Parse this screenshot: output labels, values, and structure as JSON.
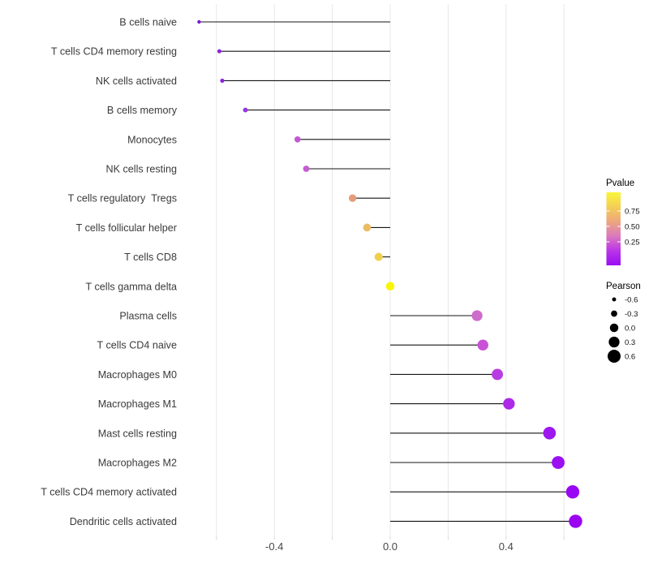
{
  "chart_data": {
    "type": "lollipop",
    "orientation": "horizontal",
    "title": "",
    "xlabel": "",
    "ylabel": "",
    "xlim": [
      -0.73,
      0.71
    ],
    "grid": "vertical-only",
    "x_tick_labels": [
      "-0.4",
      "0.0",
      "0.4"
    ],
    "x_tick_values": [
      -0.4,
      0.0,
      0.4
    ],
    "x_gridline_values": [
      -0.6,
      -0.4,
      -0.2,
      0.0,
      0.2,
      0.4,
      0.6
    ],
    "baseline_value": 0.0,
    "points": [
      {
        "label": "B cells naive",
        "pearson": -0.66,
        "dot_color": "#7d17cf"
      },
      {
        "label": "T cells CD4 memory resting",
        "pearson": -0.59,
        "dot_color": "#8a24dc"
      },
      {
        "label": "NK cells activated",
        "pearson": -0.58,
        "dot_color": "#8a24dc"
      },
      {
        "label": "B cells memory",
        "pearson": -0.5,
        "dot_color": "#9935e2"
      },
      {
        "label": "Monocytes",
        "pearson": -0.32,
        "dot_color": "#c158d2"
      },
      {
        "label": "NK cells resting",
        "pearson": -0.29,
        "dot_color": "#c45ed0"
      },
      {
        "label": "T cells regulatory  Tregs",
        "pearson": -0.13,
        "dot_color": "#e69c7b"
      },
      {
        "label": "T cells follicular helper",
        "pearson": -0.08,
        "dot_color": "#ebbd62"
      },
      {
        "label": "T cells CD8",
        "pearson": -0.04,
        "dot_color": "#eed04f"
      },
      {
        "label": "T cells gamma delta",
        "pearson": 0.0,
        "dot_color": "#f9f506"
      },
      {
        "label": "Plasma cells",
        "pearson": 0.3,
        "dot_color": "#cd6cca"
      },
      {
        "label": "T cells CD4 naive",
        "pearson": 0.32,
        "dot_color": "#c851d6"
      },
      {
        "label": "Macrophages M0",
        "pearson": 0.37,
        "dot_color": "#b83ce1"
      },
      {
        "label": "Macrophages M1",
        "pearson": 0.41,
        "dot_color": "#ac29e9"
      },
      {
        "label": "Mast cells resting",
        "pearson": 0.55,
        "dot_color": "#9d17ee"
      },
      {
        "label": "Macrophages M2",
        "pearson": 0.58,
        "dot_color": "#9a10f1"
      },
      {
        "label": "T cells CD4 memory activated",
        "pearson": 0.63,
        "dot_color": "#9906f3"
      },
      {
        "label": "Dendritic cells activated",
        "pearson": 0.64,
        "dot_color": "#9a04f3"
      }
    ],
    "legend_pvalue": {
      "title": "Pvalue",
      "tick_labels": [
        "0.75",
        "0.50",
        "0.25"
      ],
      "gradient_top_to_bottom": [
        {
          "offset": 0,
          "color": "#f9f63b"
        },
        {
          "offset": 20,
          "color": "#f4ce55"
        },
        {
          "offset": 40,
          "color": "#eda67e"
        },
        {
          "offset": 60,
          "color": "#db79bd"
        },
        {
          "offset": 80,
          "color": "#b935e8"
        },
        {
          "offset": 100,
          "color": "#9a0df2"
        }
      ]
    },
    "legend_pearson": {
      "title": "Pearson",
      "size_labels": [
        "-0.6",
        "-0.3",
        "0.0",
        "0.3",
        "0.6"
      ],
      "size_values": [
        -0.6,
        -0.3,
        0.0,
        0.3,
        0.6
      ],
      "dot_color": "#000000"
    },
    "style_colors": {
      "background": "#ffffff",
      "gridline": "#e7e7e7",
      "stem": "#141414",
      "axis_text": "#474747",
      "category_text": "#3a3a3a"
    }
  }
}
